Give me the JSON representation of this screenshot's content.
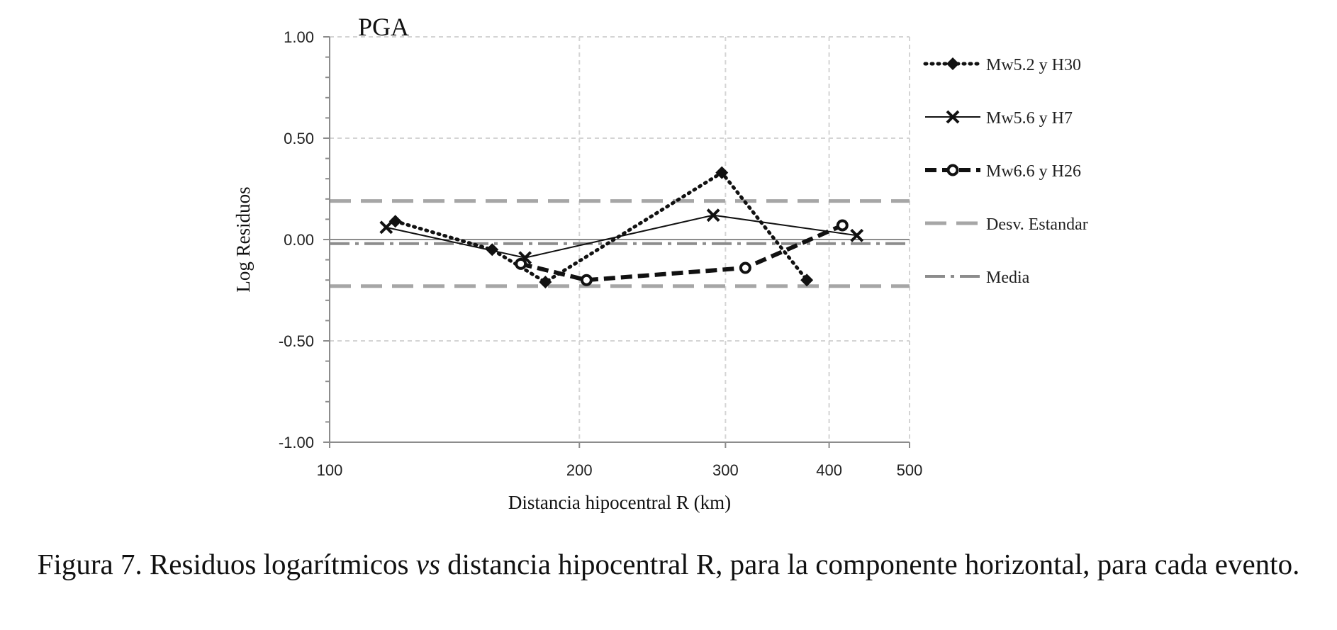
{
  "chart_data": {
    "type": "line",
    "title": "PGA",
    "xlabel": "Distancia hipocentral  R (km)",
    "ylabel": "Log Residuos",
    "x_scale": "log",
    "xlim": [
      100,
      500
    ],
    "ylim": [
      -1.0,
      1.0
    ],
    "x_ticks": [
      100,
      200,
      300,
      400,
      500
    ],
    "x_tick_labels": [
      "100",
      "200",
      "300",
      "400",
      "500"
    ],
    "y_ticks": [
      1.0,
      0.5,
      0.0,
      -0.5,
      -1.0
    ],
    "y_tick_labels": [
      "1.00",
      "0.50",
      "0.00",
      "-0.50",
      "-1.00"
    ],
    "grid": true,
    "legend_position": "right",
    "series": [
      {
        "name": "Mw5.2 y H30",
        "style": "dotted",
        "marker": "diamond",
        "color": "#111111",
        "x": [
          120,
          157,
          182,
          297,
          376
        ],
        "y": [
          0.09,
          -0.05,
          -0.21,
          0.33,
          -0.2
        ]
      },
      {
        "name": "Mw5.6 y H7",
        "style": "solid",
        "marker": "x",
        "color": "#111111",
        "x": [
          117,
          172,
          290,
          432
        ],
        "y": [
          0.06,
          -0.09,
          0.12,
          0.02
        ]
      },
      {
        "name": "Mw6.6 y H26",
        "style": "dashed",
        "marker": "circle",
        "color": "#111111",
        "x": [
          170,
          204,
          317,
          415
        ],
        "y": [
          -0.12,
          -0.2,
          -0.14,
          0.07
        ]
      }
    ],
    "reference_lines": [
      {
        "name": "Desv. Estandar",
        "style": "dashed",
        "color": "#a6a6a6",
        "values": [
          0.19,
          -0.23
        ]
      },
      {
        "name": "Media",
        "style": "dashdot",
        "color": "#8c8c8c",
        "values": [
          -0.02
        ]
      }
    ]
  },
  "caption": {
    "prefix": "Figura 7. Residuos logarítmicos ",
    "italic": "vs",
    "suffix": " distancia hipocentral R, para la componente horizontal, para cada evento."
  }
}
